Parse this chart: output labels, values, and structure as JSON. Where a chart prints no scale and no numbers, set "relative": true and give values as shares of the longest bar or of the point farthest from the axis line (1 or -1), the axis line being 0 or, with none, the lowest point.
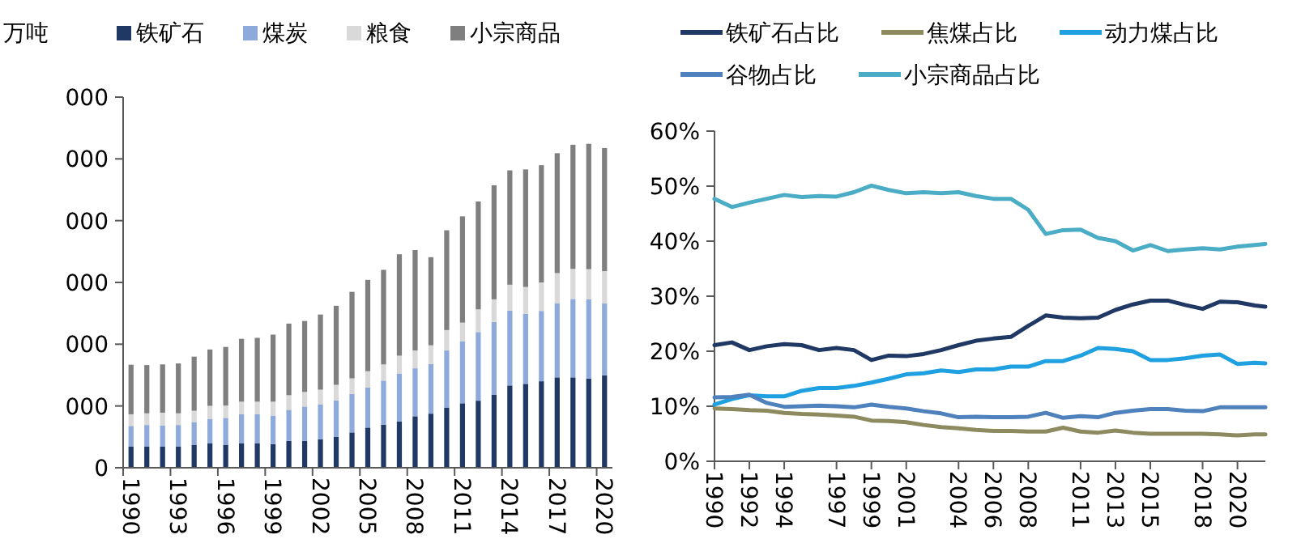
{
  "chart_data": [
    {
      "type": "bar",
      "stacked": true,
      "relative": true,
      "ylabel": "万吨",
      "legend": "top",
      "categories": [
        "1990",
        null,
        null,
        "1993",
        null,
        null,
        "1996",
        null,
        null,
        "1999",
        null,
        null,
        "2002",
        null,
        null,
        "2005",
        null,
        null,
        "2008",
        null,
        null,
        "2011",
        null,
        null,
        "2014",
        null,
        null,
        "2017",
        null,
        null,
        "2020"
      ],
      "annotations": [
        "0",
        "000",
        "000",
        "000",
        "000",
        "000",
        "000"
      ],
      "series": [
        {
          "name": "铁矿石",
          "color": "#1f3864",
          "values": [
            0.066,
            0.066,
            0.065,
            0.066,
            0.071,
            0.076,
            0.071,
            0.076,
            0.076,
            0.073,
            0.083,
            0.083,
            0.088,
            0.095,
            0.109,
            0.124,
            0.133,
            0.143,
            0.159,
            0.167,
            0.186,
            0.199,
            0.207,
            0.226,
            0.254,
            0.259,
            0.267,
            0.279,
            0.279,
            0.275,
            0.285
          ]
        },
        {
          "name": "煤炭",
          "color": "#8eaadb",
          "values": [
            0.063,
            0.066,
            0.065,
            0.066,
            0.07,
            0.075,
            0.083,
            0.09,
            0.09,
            0.088,
            0.096,
            0.106,
            0.108,
            0.113,
            0.119,
            0.124,
            0.136,
            0.148,
            0.148,
            0.153,
            0.176,
            0.191,
            0.212,
            0.224,
            0.231,
            0.216,
            0.217,
            0.229,
            0.242,
            0.245,
            0.222
          ]
        },
        {
          "name": "粮食",
          "color": "#d9d9d9",
          "values": [
            0.036,
            0.036,
            0.04,
            0.036,
            0.035,
            0.04,
            0.038,
            0.038,
            0.038,
            0.043,
            0.045,
            0.045,
            0.045,
            0.048,
            0.048,
            0.05,
            0.05,
            0.055,
            0.055,
            0.058,
            0.063,
            0.058,
            0.07,
            0.07,
            0.08,
            0.083,
            0.088,
            0.093,
            0.093,
            0.093,
            0.1
          ]
        },
        {
          "name": "小宗商品",
          "color": "#7f7f7f",
          "values": [
            0.153,
            0.149,
            0.149,
            0.154,
            0.167,
            0.174,
            0.181,
            0.194,
            0.197,
            0.207,
            0.221,
            0.219,
            0.232,
            0.244,
            0.267,
            0.282,
            0.292,
            0.313,
            0.31,
            0.272,
            0.308,
            0.328,
            0.333,
            0.352,
            0.353,
            0.363,
            0.362,
            0.37,
            0.383,
            0.387,
            0.38
          ]
        }
      ]
    },
    {
      "type": "line",
      "legend": "top",
      "grid": false,
      "marker": "none",
      "line_style": "solid",
      "x": [
        1990,
        1991,
        1992,
        1993,
        1994,
        1995,
        1996,
        1997,
        1998,
        1999,
        2000,
        2001,
        2002,
        2003,
        2004,
        2005,
        2006,
        2007,
        2008,
        2009,
        2010,
        2011,
        2012,
        2013,
        2014,
        2015,
        2016,
        2017,
        2018,
        2019,
        2020,
        2021,
        2021.6
      ],
      "xlim": [
        1990,
        2021.6
      ],
      "xticks": [
        1990,
        1992,
        1994,
        1997,
        1999,
        2001,
        2004,
        2006,
        2008,
        2011,
        2013,
        2015,
        2018,
        2020
      ],
      "ylim": [
        0,
        60
      ],
      "yticks": [
        {
          "value": 0,
          "label": "0%"
        },
        {
          "value": 10,
          "label": "10%"
        },
        {
          "value": 20,
          "label": "20%"
        },
        {
          "value": 30,
          "label": "30%"
        },
        {
          "value": 40,
          "label": "40%"
        },
        {
          "value": 50,
          "label": "50%"
        },
        {
          "value": 60,
          "label": "60%"
        }
      ],
      "series": [
        {
          "name": "铁矿石占比",
          "color": "#1f3864",
          "values": [
            21.1,
            21.6,
            20.2,
            20.9,
            21.3,
            21.1,
            20.2,
            20.6,
            20.2,
            18.4,
            19.2,
            19.1,
            19.5,
            20.2,
            21.1,
            21.9,
            22.3,
            22.6,
            24.6,
            26.5,
            26.1,
            26.0,
            26.1,
            27.5,
            28.5,
            29.2,
            29.2,
            28.4,
            27.7,
            29.0,
            28.9,
            28.3,
            28.1
          ]
        },
        {
          "name": "焦煤占比",
          "color": "#8c8a5e",
          "values": [
            9.6,
            9.5,
            9.3,
            9.2,
            8.8,
            8.6,
            8.5,
            8.3,
            8.1,
            7.4,
            7.3,
            7.1,
            6.6,
            6.2,
            6.0,
            5.7,
            5.5,
            5.5,
            5.4,
            5.4,
            6.1,
            5.4,
            5.2,
            5.6,
            5.2,
            5.0,
            5.0,
            5.0,
            5.0,
            4.9,
            4.7,
            4.9,
            4.9
          ]
        },
        {
          "name": "动力煤占比",
          "color": "#1fa0e0",
          "values": [
            10.3,
            11.3,
            12.0,
            11.8,
            11.8,
            12.8,
            13.3,
            13.3,
            13.7,
            14.3,
            15.0,
            15.8,
            16.0,
            16.5,
            16.2,
            16.7,
            16.7,
            17.2,
            17.2,
            18.2,
            18.2,
            19.2,
            20.6,
            20.4,
            20.0,
            18.4,
            18.4,
            18.7,
            19.2,
            19.4,
            17.7,
            17.9,
            17.8
          ]
        },
        {
          "name": "谷物占比",
          "color": "#4f81bd",
          "values": [
            11.6,
            11.7,
            12.1,
            10.6,
            9.9,
            10.0,
            10.1,
            10.0,
            9.8,
            10.3,
            9.9,
            9.6,
            9.1,
            8.7,
            8.0,
            8.1,
            8.0,
            8.0,
            8.1,
            8.8,
            7.9,
            8.2,
            8.0,
            8.8,
            9.2,
            9.5,
            9.5,
            9.2,
            9.1,
            9.8,
            9.8,
            9.8,
            9.8
          ]
        },
        {
          "name": "小宗商品占比",
          "color": "#4bacc6",
          "values": [
            47.7,
            46.2,
            47.0,
            47.7,
            48.4,
            48.0,
            48.2,
            48.1,
            48.9,
            50.1,
            49.3,
            48.7,
            48.9,
            48.7,
            48.9,
            48.2,
            47.7,
            47.7,
            45.7,
            41.3,
            42.0,
            42.1,
            40.6,
            40.0,
            38.3,
            39.3,
            38.2,
            38.5,
            38.7,
            38.5,
            39.0,
            39.3,
            39.5
          ]
        }
      ]
    }
  ]
}
